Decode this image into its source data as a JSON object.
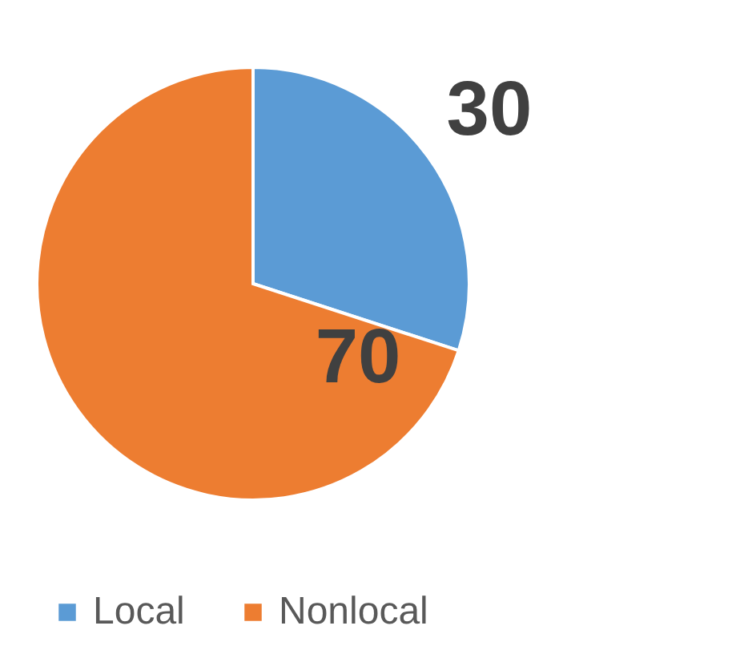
{
  "chart_data": {
    "type": "pie",
    "categories": [
      "Local",
      "Nonlocal"
    ],
    "values": [
      30,
      70
    ],
    "colors": [
      "#5b9bd5",
      "#ed7d31"
    ],
    "data_labels": true,
    "legend": "bottom"
  }
}
